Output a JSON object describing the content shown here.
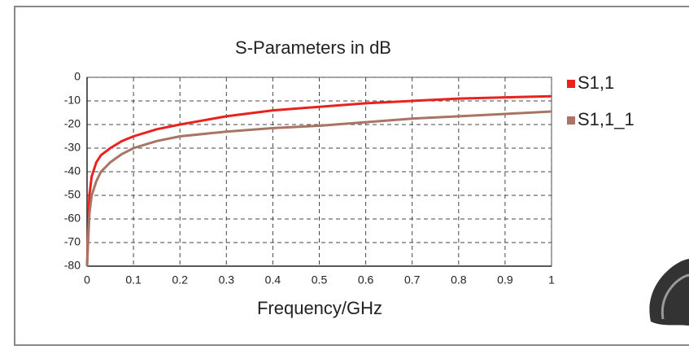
{
  "chart_data": {
    "type": "line",
    "title": "S-Parameters in dB",
    "x_label": "Frequency/GHz",
    "x": [
      0,
      0.005,
      0.01,
      0.02,
      0.03,
      0.05,
      0.075,
      0.1,
      0.15,
      0.2,
      0.3,
      0.4,
      0.5,
      0.6,
      0.7,
      0.8,
      0.9,
      1
    ],
    "series": [
      {
        "name": "S1,1",
        "color": "#e8231f",
        "values": [
          -80,
          -50,
          -42,
          -36,
          -33,
          -30,
          -27,
          -25,
          -22,
          -20,
          -16.5,
          -14,
          -12.5,
          -11,
          -10,
          -9,
          -8.5,
          -8
        ]
      },
      {
        "name": "S1,1_1",
        "color": "#a87565",
        "values": [
          -80,
          -58,
          -50,
          -44,
          -40,
          -36,
          -32.5,
          -30,
          -27,
          -25,
          -23,
          -21.5,
          -20.5,
          -19,
          -17.5,
          -16.5,
          -15.5,
          -14.5
        ]
      }
    ],
    "xlim": [
      0,
      1
    ],
    "xticks": [
      0,
      0.1,
      0.2,
      0.3,
      0.4,
      0.5,
      0.6,
      0.7,
      0.8,
      0.9,
      1
    ],
    "ylim": [
      -80,
      0
    ],
    "yticks": [
      0,
      -10,
      -20,
      -30,
      -40,
      -50,
      -60,
      -70,
      -80
    ],
    "grid": true
  }
}
